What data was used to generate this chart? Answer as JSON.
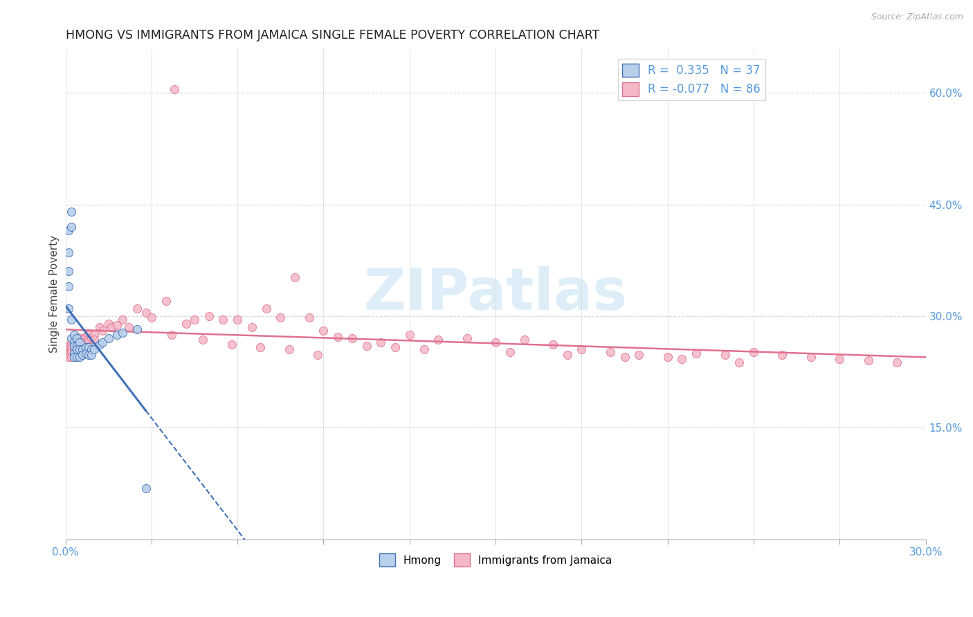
{
  "title": "HMONG VS IMMIGRANTS FROM JAMAICA SINGLE FEMALE POVERTY CORRELATION CHART",
  "source": "Source: ZipAtlas.com",
  "ylabel": "Single Female Poverty",
  "right_ytick_vals": [
    0.0,
    0.15,
    0.3,
    0.45,
    0.6
  ],
  "right_yticklabels": [
    "",
    "15.0%",
    "30.0%",
    "45.0%",
    "60.0%"
  ],
  "xmin": 0.0,
  "xmax": 0.3,
  "ymin": 0.0,
  "ymax": 0.66,
  "legend_r_hmong": "0.335",
  "legend_n_hmong": "37",
  "legend_r_jamaica": "-0.077",
  "legend_n_jamaica": "86",
  "hmong_fill": "#b8d0ea",
  "hmong_edge": "#4070b8",
  "jamaica_fill": "#f5b8c8",
  "jamaica_edge": "#e07090",
  "watermark_color": "#ddeef8",
  "background": "#ffffff",
  "grid_color": "#d8d8d8",
  "axis_label_color": "#5599dd",
  "title_color": "#222222",
  "source_color": "#aaaaaa",
  "hmong_x": [
    0.001,
    0.001,
    0.001,
    0.001,
    0.001,
    0.002,
    0.002,
    0.002,
    0.002,
    0.003,
    0.003,
    0.003,
    0.003,
    0.003,
    0.004,
    0.004,
    0.004,
    0.004,
    0.005,
    0.005,
    0.005,
    0.006,
    0.006,
    0.007,
    0.007,
    0.008,
    0.008,
    0.009,
    0.009,
    0.01,
    0.012,
    0.013,
    0.015,
    0.018,
    0.02,
    0.025,
    0.028
  ],
  "hmong_y": [
    0.415,
    0.385,
    0.36,
    0.34,
    0.31,
    0.44,
    0.42,
    0.295,
    0.27,
    0.275,
    0.265,
    0.26,
    0.25,
    0.245,
    0.27,
    0.26,
    0.255,
    0.245,
    0.265,
    0.255,
    0.245,
    0.255,
    0.248,
    0.258,
    0.25,
    0.258,
    0.248,
    0.255,
    0.248,
    0.255,
    0.262,
    0.265,
    0.27,
    0.275,
    0.278,
    0.282,
    0.068
  ],
  "jamaica_x": [
    0.001,
    0.001,
    0.001,
    0.001,
    0.002,
    0.002,
    0.002,
    0.002,
    0.003,
    0.003,
    0.003,
    0.003,
    0.004,
    0.004,
    0.004,
    0.004,
    0.005,
    0.005,
    0.005,
    0.006,
    0.006,
    0.007,
    0.007,
    0.008,
    0.008,
    0.009,
    0.01,
    0.01,
    0.012,
    0.013,
    0.015,
    0.016,
    0.018,
    0.02,
    0.022,
    0.025,
    0.028,
    0.03,
    0.035,
    0.038,
    0.042,
    0.045,
    0.05,
    0.055,
    0.06,
    0.065,
    0.07,
    0.075,
    0.08,
    0.085,
    0.09,
    0.095,
    0.1,
    0.11,
    0.12,
    0.13,
    0.14,
    0.15,
    0.16,
    0.17,
    0.18,
    0.19,
    0.2,
    0.21,
    0.22,
    0.23,
    0.24,
    0.25,
    0.26,
    0.27,
    0.28,
    0.29,
    0.037,
    0.048,
    0.058,
    0.068,
    0.078,
    0.088,
    0.105,
    0.115,
    0.125,
    0.155,
    0.175,
    0.195,
    0.215,
    0.235
  ],
  "jamaica_y": [
    0.26,
    0.255,
    0.25,
    0.245,
    0.265,
    0.258,
    0.252,
    0.245,
    0.268,
    0.26,
    0.255,
    0.248,
    0.272,
    0.265,
    0.258,
    0.25,
    0.268,
    0.26,
    0.252,
    0.27,
    0.262,
    0.272,
    0.265,
    0.275,
    0.268,
    0.27,
    0.275,
    0.268,
    0.285,
    0.28,
    0.29,
    0.285,
    0.288,
    0.295,
    0.285,
    0.31,
    0.305,
    0.298,
    0.32,
    0.605,
    0.29,
    0.295,
    0.3,
    0.295,
    0.295,
    0.285,
    0.31,
    0.298,
    0.352,
    0.298,
    0.28,
    0.272,
    0.27,
    0.265,
    0.275,
    0.268,
    0.27,
    0.265,
    0.268,
    0.262,
    0.255,
    0.252,
    0.248,
    0.245,
    0.25,
    0.248,
    0.252,
    0.248,
    0.245,
    0.242,
    0.24,
    0.238,
    0.275,
    0.268,
    0.262,
    0.258,
    0.255,
    0.248,
    0.26,
    0.258,
    0.255,
    0.252,
    0.248,
    0.245,
    0.242,
    0.238
  ]
}
